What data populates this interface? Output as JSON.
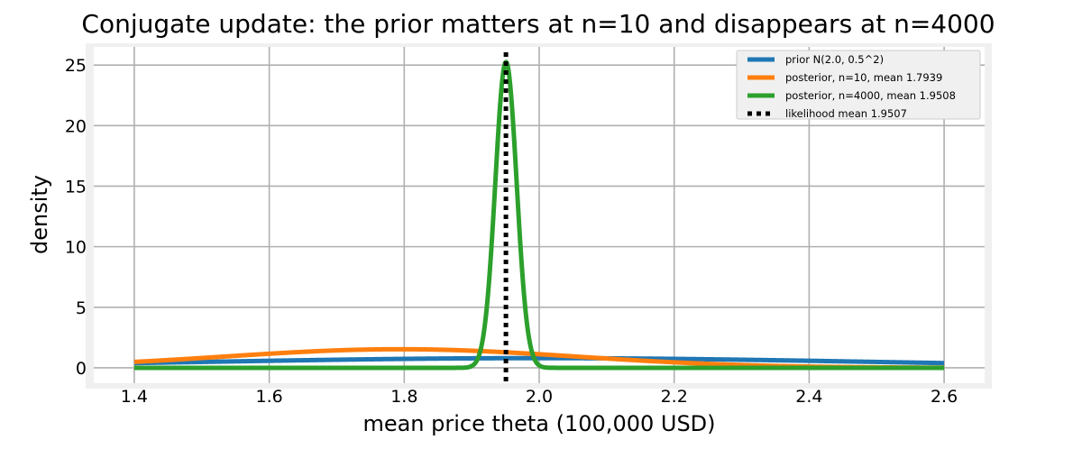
{
  "chart_data": {
    "type": "line",
    "title": "Conjugate update: the prior matters at n=10 and disappears at n=4000",
    "xlabel": "mean price theta (100,000 USD)",
    "ylabel": "density",
    "xlim": [
      1.34,
      2.66
    ],
    "ylim": [
      -1.27,
      26.5
    ],
    "xticks": [
      1.4,
      1.6,
      1.8,
      2.0,
      2.2,
      2.4,
      2.6
    ],
    "xtick_labels": [
      "1.4",
      "1.6",
      "1.8",
      "2.0",
      "2.2",
      "2.4",
      "2.6"
    ],
    "yticks": [
      0,
      5,
      10,
      15,
      20,
      25
    ],
    "ytick_labels": [
      "0",
      "5",
      "10",
      "15",
      "20",
      "25"
    ],
    "grid": true,
    "legend_position": "top-right",
    "x_range": [
      1.4,
      2.6
    ],
    "series": [
      {
        "name": "prior N(2.0, 0.5^2)",
        "kind": "normal",
        "mean": 2.0,
        "sd": 0.5,
        "color": "#1f77b4",
        "style": "solid"
      },
      {
        "name": "posterior, n=10, mean 1.7939",
        "kind": "normal",
        "mean": 1.7939,
        "sd": 0.26,
        "color": "#ff7f0e",
        "style": "solid"
      },
      {
        "name": "posterior, n=4000, mean 1.9508",
        "kind": "normal",
        "mean": 1.9508,
        "sd": 0.0158,
        "color": "#2ca02c",
        "style": "solid"
      },
      {
        "name": "likelihood mean 1.9507",
        "kind": "vline",
        "x": 1.9507,
        "color": "#000000",
        "style": "dotted"
      }
    ]
  }
}
